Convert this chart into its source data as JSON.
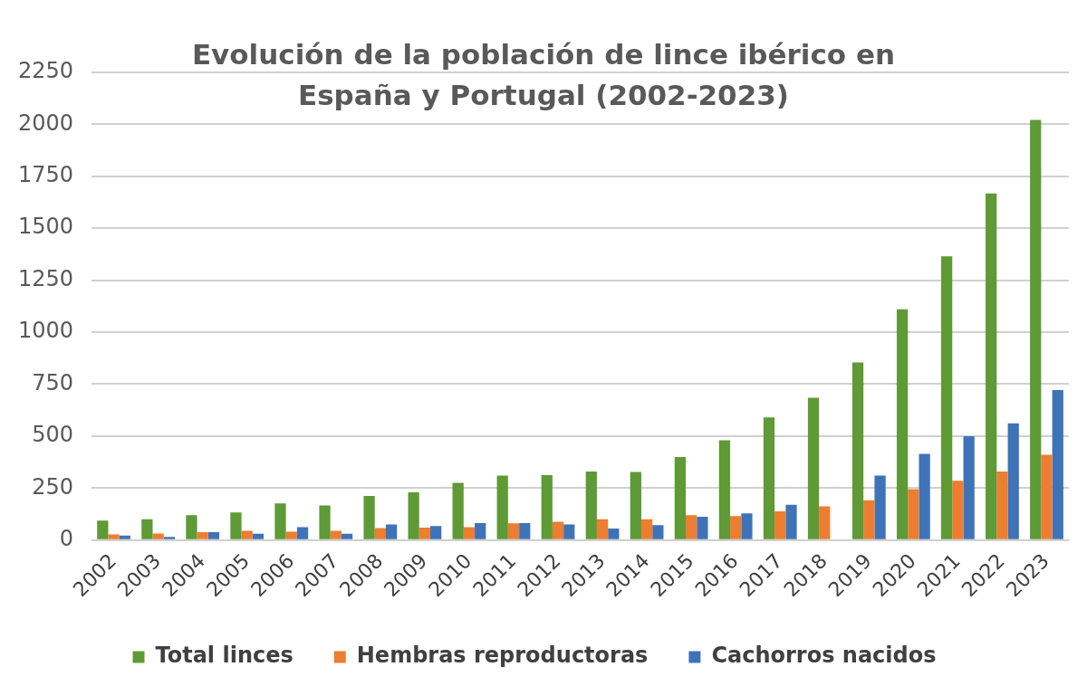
{
  "chart_data": {
    "type": "bar",
    "title": "Evolución de la población de lince ibérico en España y Portugal (2002-2023)",
    "categories": [
      "2002",
      "2003",
      "2004",
      "2005",
      "2006",
      "2007",
      "2008",
      "2009",
      "2010",
      "2011",
      "2012",
      "2013",
      "2014",
      "2015",
      "2016",
      "2017",
      "2018",
      "2019",
      "2020",
      "2021",
      "2022",
      "2023"
    ],
    "series": [
      {
        "name": "Total linces",
        "color": "#5e9a35",
        "values": [
          94,
          100,
          120,
          133,
          176,
          167,
          212,
          230,
          275,
          310,
          312,
          330,
          328,
          400,
          480,
          590,
          685,
          855,
          1110,
          1365,
          1668,
          2021
        ]
      },
      {
        "name": "Hembras reproductoras",
        "color": "#ed7d31",
        "values": [
          27,
          32,
          38,
          45,
          40,
          45,
          58,
          60,
          62,
          80,
          88,
          100,
          100,
          120,
          115,
          138,
          162,
          192,
          245,
          285,
          330,
          410
        ]
      },
      {
        "name": "Cachorros nacidos",
        "color": "#3f73b8",
        "values": [
          22,
          15,
          38,
          30,
          62,
          30,
          75,
          68,
          82,
          82,
          75,
          55,
          72,
          112,
          128,
          170,
          null,
          310,
          415,
          500,
          562,
          722
        ]
      }
    ],
    "ylim": [
      0,
      2250
    ],
    "yticks": [
      0,
      250,
      500,
      750,
      1000,
      1250,
      1500,
      1750,
      2000,
      2250
    ],
    "grid": "y",
    "legend": "bottom"
  }
}
